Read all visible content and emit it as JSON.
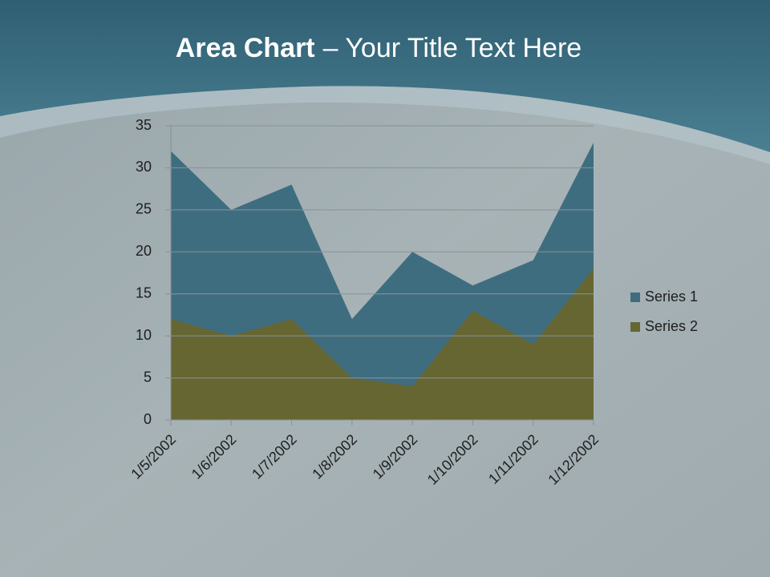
{
  "chart_data": {
    "type": "area",
    "title_parts": [
      "Area Chart",
      "– Your Title Text Here"
    ],
    "categories": [
      "1/5/2002",
      "1/6/2002",
      "1/7/2002",
      "1/8/2002",
      "1/9/2002",
      "1/10/2002",
      "1/11/2002",
      "1/12/2002"
    ],
    "series": [
      {
        "name": "Series 1",
        "color": "#3f6d80",
        "values": [
          32,
          25,
          28,
          12,
          20,
          16,
          19,
          33
        ]
      },
      {
        "name": "Series 2",
        "color": "#666633",
        "values": [
          12,
          10,
          12,
          5,
          4,
          13,
          9,
          18
        ]
      }
    ],
    "ylim": [
      0,
      35
    ],
    "yticks": [
      0,
      5,
      10,
      15,
      20,
      25,
      30,
      35
    ],
    "grid": true,
    "legend": "right"
  }
}
